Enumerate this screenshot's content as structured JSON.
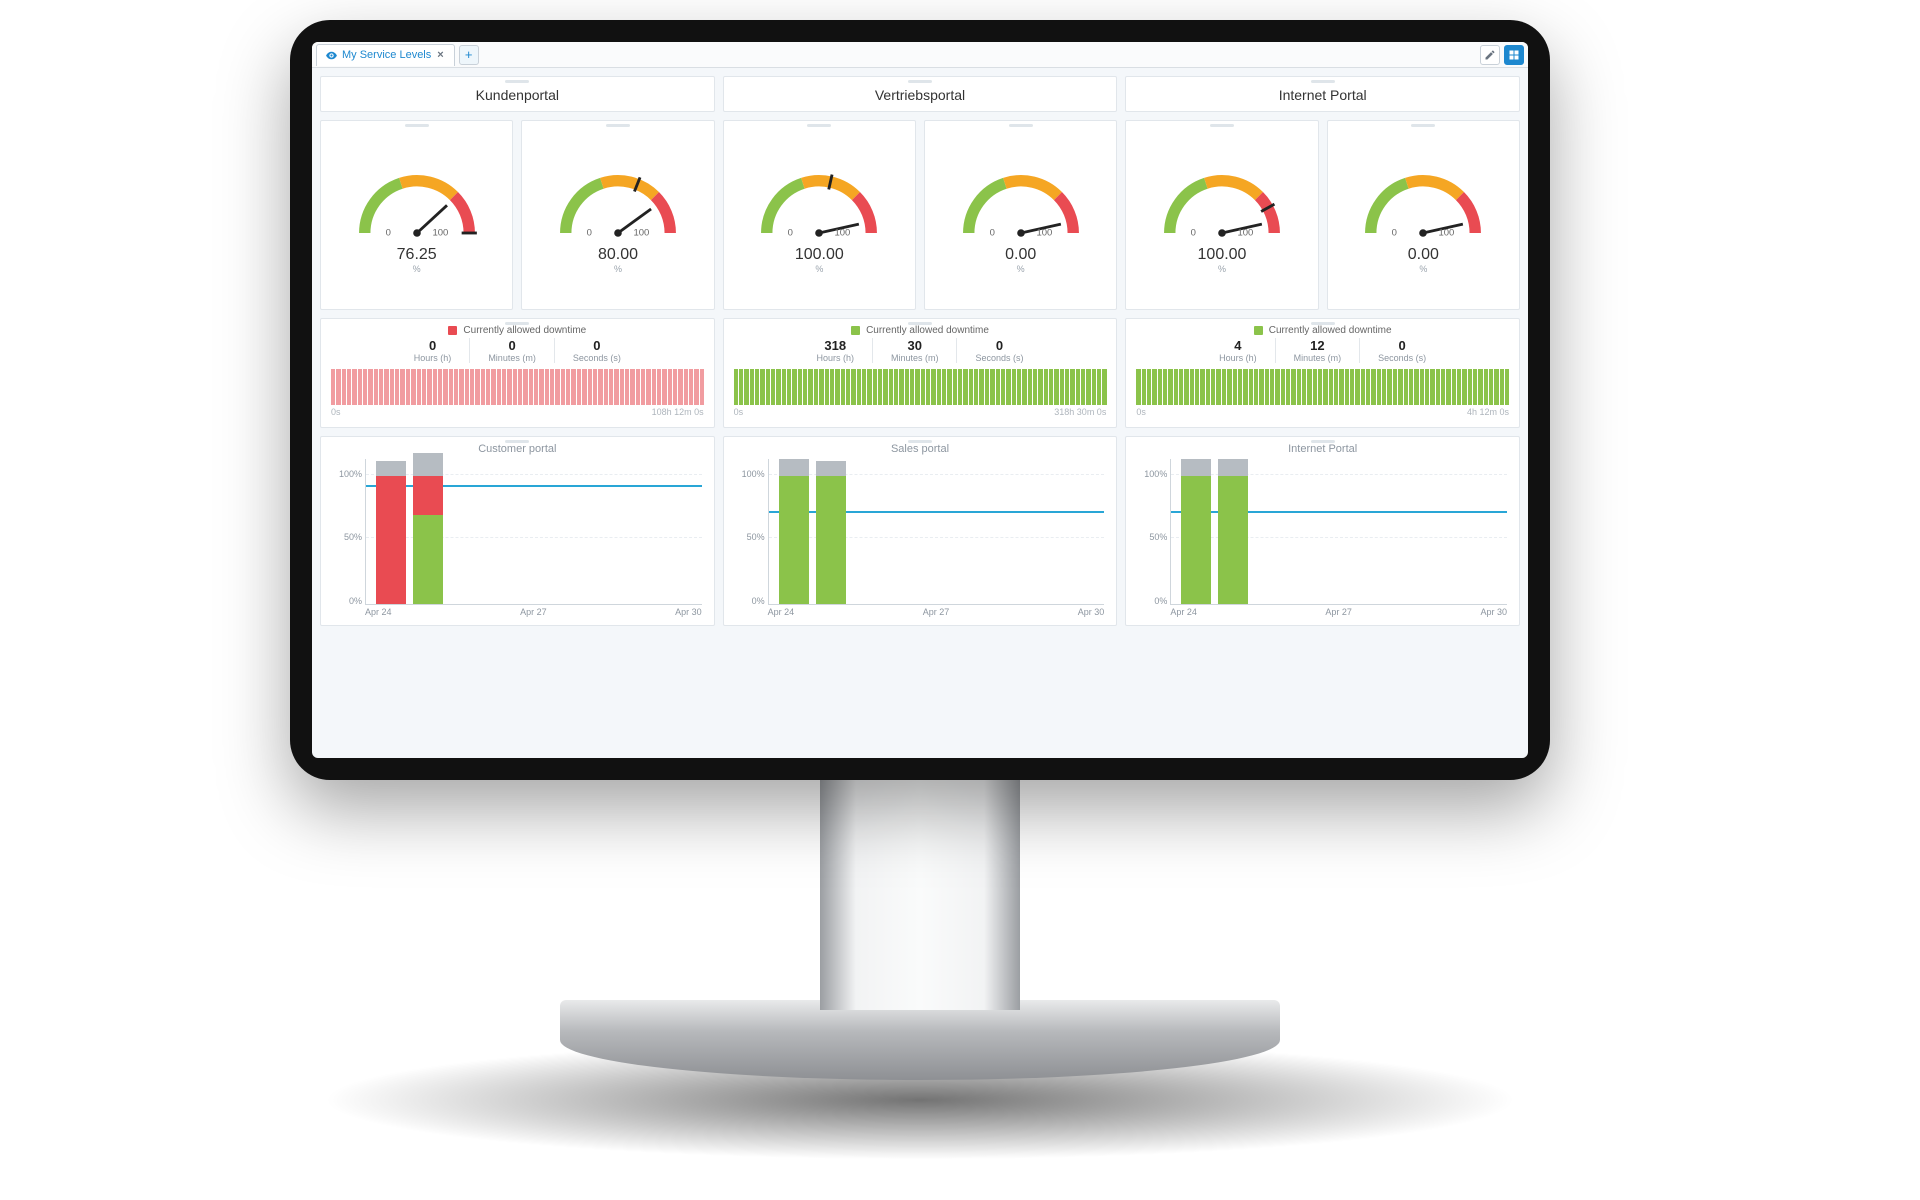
{
  "tab": {
    "label": "My Service Levels"
  },
  "colors": {
    "red": "#e94b52",
    "green": "#8bc34a",
    "orange": "#f5a623",
    "grey": "#b6bcc2",
    "refline": "#29a6d6",
    "panel_border": "#e1e6eb"
  },
  "columns": [
    {
      "title": "Kundenportal",
      "gauges": [
        {
          "value": "76.25",
          "unit": "%",
          "needle_pct": 76.25,
          "marker_pct": 100
        },
        {
          "value": "80.00",
          "unit": "%",
          "needle_pct": 80.0,
          "marker_pct": 62
        }
      ],
      "downtime": {
        "legend": "Currently allowed downtime",
        "swatch_color": "#e94b52",
        "hours": "0",
        "minutes": "0",
        "seconds": "0",
        "hours_lbl": "Hours (h)",
        "minutes_lbl": "Minutes (m)",
        "seconds_lbl": "Seconds (s)",
        "bar_color": "#f19ca0",
        "bar_count": 70,
        "footer_left": "0s",
        "footer_right": "108h 12m 0s"
      },
      "chart": {
        "title": "Customer portal",
        "yticks": [
          {
            "label": "100%",
            "pct": 10
          },
          {
            "label": "50%",
            "pct": 54
          },
          {
            "label": "0%",
            "pct": 98
          }
        ],
        "refline_pct": 18,
        "bars": [
          {
            "x_pct": 3,
            "segments": [
              {
                "color": "#e94b52",
                "bottom_pct": 0,
                "height_pct": 100
              },
              {
                "color": "#b6bcc2",
                "bottom_pct": 100,
                "height_pct": 12
              }
            ]
          },
          {
            "x_pct": 14,
            "segments": [
              {
                "color": "#8bc34a",
                "bottom_pct": 0,
                "height_pct": 70
              },
              {
                "color": "#e94b52",
                "bottom_pct": 70,
                "height_pct": 30
              },
              {
                "color": "#b6bcc2",
                "bottom_pct": 100,
                "height_pct": 18
              }
            ]
          }
        ],
        "xlabels": [
          "Apr 24",
          "Apr 27",
          "Apr 30"
        ]
      }
    },
    {
      "title": "Vertriebsportal",
      "gauges": [
        {
          "value": "100.00",
          "unit": "%",
          "needle_pct": 93,
          "marker_pct": 57
        },
        {
          "value": "0.00",
          "unit": "%",
          "needle_pct": 93,
          "marker_pct": null
        }
      ],
      "downtime": {
        "legend": "Currently allowed downtime",
        "swatch_color": "#8bc34a",
        "hours": "318",
        "minutes": "30",
        "seconds": "0",
        "hours_lbl": "Hours (h)",
        "minutes_lbl": "Minutes (m)",
        "seconds_lbl": "Seconds (s)",
        "bar_color": "#8bc34a",
        "bar_count": 70,
        "footer_left": "0s",
        "footer_right": "318h 30m 0s"
      },
      "chart": {
        "title": "Sales portal",
        "yticks": [
          {
            "label": "100%",
            "pct": 10
          },
          {
            "label": "50%",
            "pct": 54
          },
          {
            "label": "0%",
            "pct": 98
          }
        ],
        "refline_pct": 36,
        "bars": [
          {
            "x_pct": 3,
            "segments": [
              {
                "color": "#8bc34a",
                "bottom_pct": 0,
                "height_pct": 100
              },
              {
                "color": "#b6bcc2",
                "bottom_pct": 100,
                "height_pct": 14
              }
            ]
          },
          {
            "x_pct": 14,
            "segments": [
              {
                "color": "#8bc34a",
                "bottom_pct": 0,
                "height_pct": 100
              },
              {
                "color": "#b6bcc2",
                "bottom_pct": 100,
                "height_pct": 12
              }
            ]
          }
        ],
        "xlabels": [
          "Apr 24",
          "Apr 27",
          "Apr 30"
        ]
      }
    },
    {
      "title": "Internet Portal",
      "gauges": [
        {
          "value": "100.00",
          "unit": "%",
          "needle_pct": 93,
          "marker_pct": 84
        },
        {
          "value": "0.00",
          "unit": "%",
          "needle_pct": 93,
          "marker_pct": null
        }
      ],
      "downtime": {
        "legend": "Currently allowed downtime",
        "swatch_color": "#8bc34a",
        "hours": "4",
        "minutes": "12",
        "seconds": "0",
        "hours_lbl": "Hours (h)",
        "minutes_lbl": "Minutes (m)",
        "seconds_lbl": "Seconds (s)",
        "bar_color": "#8bc34a",
        "bar_count": 70,
        "footer_left": "0s",
        "footer_right": "4h 12m 0s"
      },
      "chart": {
        "title": "Internet Portal",
        "yticks": [
          {
            "label": "100%",
            "pct": 10
          },
          {
            "label": "50%",
            "pct": 54
          },
          {
            "label": "0%",
            "pct": 98
          }
        ],
        "refline_pct": 36,
        "bars": [
          {
            "x_pct": 3,
            "segments": [
              {
                "color": "#8bc34a",
                "bottom_pct": 0,
                "height_pct": 100
              },
              {
                "color": "#b6bcc2",
                "bottom_pct": 100,
                "height_pct": 14
              }
            ]
          },
          {
            "x_pct": 14,
            "segments": [
              {
                "color": "#8bc34a",
                "bottom_pct": 0,
                "height_pct": 100
              },
              {
                "color": "#b6bcc2",
                "bottom_pct": 100,
                "height_pct": 14
              }
            ]
          }
        ],
        "xlabels": [
          "Apr 24",
          "Apr 27",
          "Apr 30"
        ]
      }
    }
  ],
  "gauge_style": {
    "arc_stroke": 12,
    "tick_label_left": "0",
    "tick_label_right": "100",
    "stops": [
      {
        "pct": 40,
        "color": "#8bc34a"
      },
      {
        "pct": 75,
        "color": "#f5a623"
      },
      {
        "pct": 100,
        "color": "#e94b52"
      }
    ]
  }
}
